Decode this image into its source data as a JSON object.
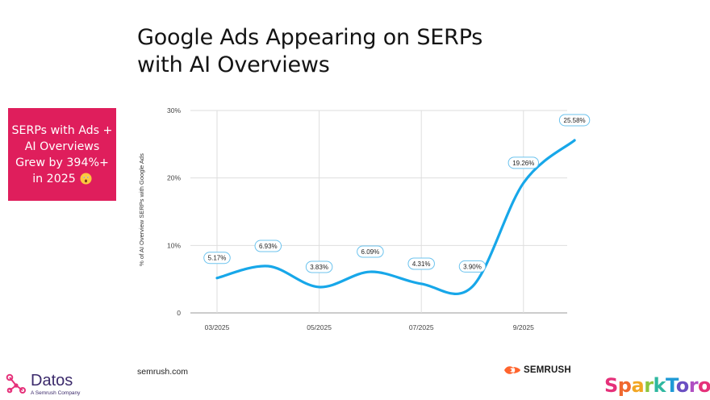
{
  "title": {
    "line1": "Google Ads Appearing on SERPs",
    "line2": "with AI Overviews"
  },
  "callout": {
    "line1": "SERPs with Ads +",
    "line2": "AI Overviews",
    "line3": "Grew by 394%+",
    "line4": "in 2025",
    "emoji_icon": "astonished-face-icon",
    "background": "#df1e5c"
  },
  "footer": {
    "source": "semrush.com",
    "semrush_logo_text": "SEMRUSH",
    "datos_name": "Datos",
    "datos_sub": "A Semrush Company",
    "sparktoro_letters": [
      "S",
      "p",
      "a",
      "r",
      "k",
      "T",
      "o",
      "r",
      "o"
    ],
    "sparktoro_colors": [
      "#e5317a",
      "#f0682f",
      "#f2a623",
      "#8cc63f",
      "#2fb8a0",
      "#1f9ad6",
      "#6a4fc2",
      "#b04fc2",
      "#e5317a"
    ]
  },
  "chart_data": {
    "type": "line",
    "title": "",
    "xlabel": "",
    "ylabel": "% of AI Overview SERPs with Google Ads",
    "ylim": [
      0,
      30
    ],
    "yticks": [
      0,
      10,
      20,
      30
    ],
    "ytick_labels": [
      "0",
      "10%",
      "20%",
      "30%"
    ],
    "xticks": [
      "03/2025",
      "05/2025",
      "07/2025",
      "9/2025"
    ],
    "x": [
      "03/2025",
      "04/2025",
      "05/2025",
      "06/2025",
      "07/2025",
      "08/2025",
      "09/2025",
      "10/2025"
    ],
    "values": [
      5.17,
      6.93,
      3.83,
      6.09,
      4.31,
      3.9,
      19.26,
      25.58
    ],
    "labels": [
      "5.17%",
      "6.93%",
      "3.83%",
      "6.09%",
      "4.31%",
      "3.90%",
      "19.26%",
      "25.58%"
    ],
    "grid": true,
    "line_color": "#17a7e9"
  }
}
